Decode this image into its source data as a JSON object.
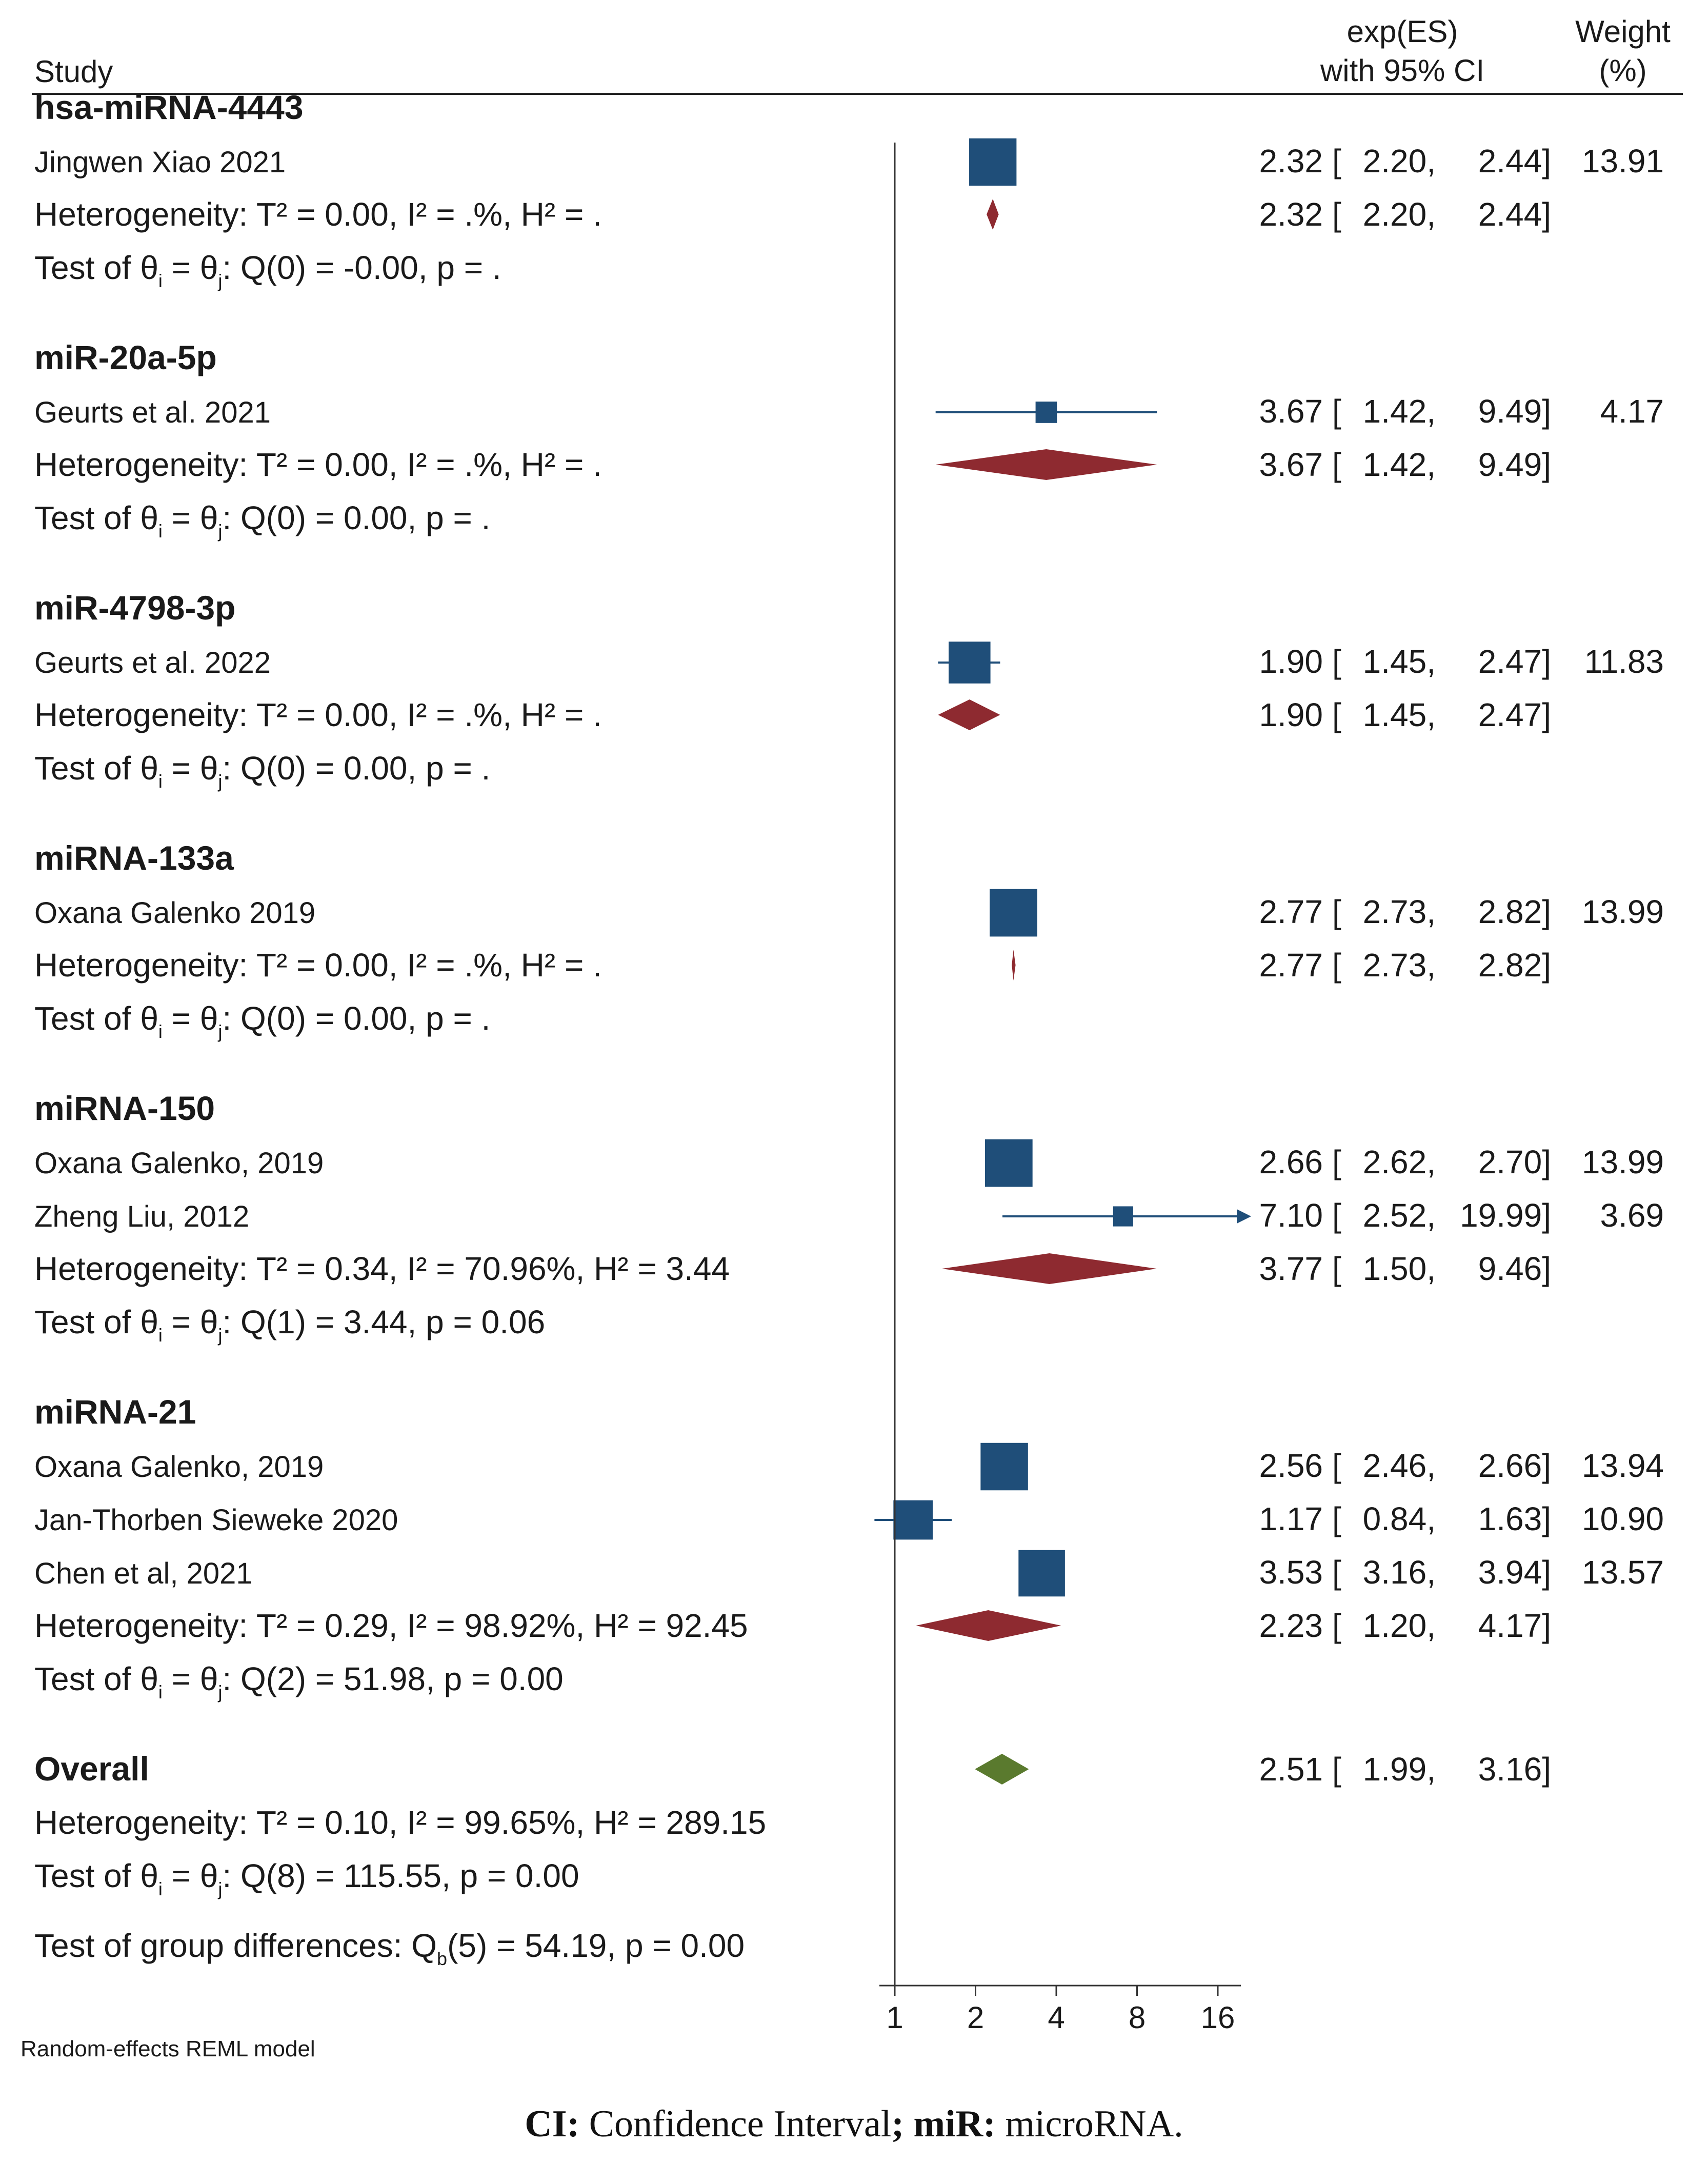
{
  "header": {
    "study_label": "Study",
    "es_label_line1": "exp(ES)",
    "es_label_line2": "with 95% CI",
    "weight_label_line1": "Weight",
    "weight_label_line2": "(%)"
  },
  "colors": {
    "study_square": "#1f4e79",
    "subgroup_diamond": "#8e2a30",
    "overall_diamond": "#5a7a2e",
    "line": "#1f4e79"
  },
  "chart_data": {
    "type": "forest",
    "xscale": "log2",
    "xlim": [
      0.8,
      19.99
    ],
    "ticks": [
      1,
      2,
      4,
      8,
      16
    ],
    "tick_labels": [
      "1",
      "2",
      "4",
      "8",
      "16"
    ],
    "model_note": "Random-effects REML model",
    "groups": [
      {
        "name": "hsa-miRNA-4443",
        "studies": [
          {
            "label": "Jingwen Xiao 2021",
            "es": 2.32,
            "lo": 2.2,
            "hi": 2.44,
            "weight": 13.91,
            "text_es": "2.32",
            "text_lo": "2.20,",
            "text_hi": "2.44]",
            "text_w": "13.91"
          }
        ],
        "heterogeneity": "Heterogeneity: T² = 0.00, I² = .%, H² = .",
        "pooled": {
          "es": 2.32,
          "lo": 2.2,
          "hi": 2.44,
          "text_es": "2.32",
          "text_lo": "2.20,",
          "text_hi": "2.44]"
        },
        "test": {
          "pre": "Test of θ",
          "mid": " = θ",
          "post": ": Q(0) = -0.00, p = ."
        }
      },
      {
        "name": "miR-20a-5p",
        "studies": [
          {
            "label": "Geurts et al. 2021",
            "es": 3.67,
            "lo": 1.42,
            "hi": 9.49,
            "weight": 4.17,
            "text_es": "3.67",
            "text_lo": "1.42,",
            "text_hi": "9.49]",
            "text_w": "4.17"
          }
        ],
        "heterogeneity": "Heterogeneity: T² = 0.00, I² = .%, H² = .",
        "pooled": {
          "es": 3.67,
          "lo": 1.42,
          "hi": 9.49,
          "text_es": "3.67",
          "text_lo": "1.42,",
          "text_hi": "9.49]"
        },
        "test": {
          "pre": "Test of θ",
          "mid": " = θ",
          "post": ": Q(0) = 0.00, p = ."
        }
      },
      {
        "name": "miR-4798-3p",
        "studies": [
          {
            "label": "Geurts et al. 2022",
            "es": 1.9,
            "lo": 1.45,
            "hi": 2.47,
            "weight": 11.83,
            "text_es": "1.90",
            "text_lo": "1.45,",
            "text_hi": "2.47]",
            "text_w": "11.83"
          }
        ],
        "heterogeneity": "Heterogeneity: T² = 0.00, I² = .%, H² = .",
        "pooled": {
          "es": 1.9,
          "lo": 1.45,
          "hi": 2.47,
          "text_es": "1.90",
          "text_lo": "1.45,",
          "text_hi": "2.47]"
        },
        "test": {
          "pre": "Test of θ",
          "mid": " = θ",
          "post": ": Q(0) = 0.00, p = ."
        }
      },
      {
        "name": "miRNA-133a",
        "studies": [
          {
            "label": "Oxana Galenko 2019",
            "es": 2.77,
            "lo": 2.73,
            "hi": 2.82,
            "weight": 13.99,
            "text_es": "2.77",
            "text_lo": "2.73,",
            "text_hi": "2.82]",
            "text_w": "13.99"
          }
        ],
        "heterogeneity": "Heterogeneity: T² = 0.00, I² = .%, H² = .",
        "pooled": {
          "es": 2.77,
          "lo": 2.73,
          "hi": 2.82,
          "text_es": "2.77",
          "text_lo": "2.73,",
          "text_hi": "2.82]"
        },
        "test": {
          "pre": "Test of θ",
          "mid": " = θ",
          "post": ": Q(0) = 0.00, p = ."
        }
      },
      {
        "name": "miRNA-150",
        "studies": [
          {
            "label": "Oxana Galenko, 2019",
            "es": 2.66,
            "lo": 2.62,
            "hi": 2.7,
            "weight": 13.99,
            "text_es": "2.66",
            "text_lo": "2.62,",
            "text_hi": "2.70]",
            "text_w": "13.99"
          },
          {
            "label": "Zheng Liu, 2012",
            "es": 7.1,
            "lo": 2.52,
            "hi": 19.99,
            "weight": 3.69,
            "text_es": "7.10",
            "text_lo": "2.52,",
            "text_hi": "19.99]",
            "text_w": "3.69",
            "arrow": true
          }
        ],
        "heterogeneity": "Heterogeneity: T² = 0.34, I² = 70.96%, H² = 3.44",
        "pooled": {
          "es": 3.77,
          "lo": 1.5,
          "hi": 9.46,
          "text_es": "3.77",
          "text_lo": "1.50,",
          "text_hi": "9.46]"
        },
        "test": {
          "pre": "Test of θ",
          "mid": " = θ",
          "post": ": Q(1) = 3.44, p = 0.06"
        }
      },
      {
        "name": "miRNA-21",
        "studies": [
          {
            "label": "Oxana Galenko, 2019",
            "es": 2.56,
            "lo": 2.46,
            "hi": 2.66,
            "weight": 13.94,
            "text_es": "2.56",
            "text_lo": "2.46,",
            "text_hi": "2.66]",
            "text_w": "13.94"
          },
          {
            "label": "Jan-Thorben Sieweke 2020",
            "es": 1.17,
            "lo": 0.84,
            "hi": 1.63,
            "weight": 10.9,
            "text_es": "1.17",
            "text_lo": "0.84,",
            "text_hi": "1.63]",
            "text_w": "10.90"
          },
          {
            "label": "Chen et al, 2021",
            "es": 3.53,
            "lo": 3.16,
            "hi": 3.94,
            "weight": 13.57,
            "text_es": "3.53",
            "text_lo": "3.16,",
            "text_hi": "3.94]",
            "text_w": "13.57"
          }
        ],
        "heterogeneity": "Heterogeneity: T² = 0.29, I² = 98.92%, H² = 92.45",
        "pooled": {
          "es": 2.23,
          "lo": 1.2,
          "hi": 4.17,
          "text_es": "2.23",
          "text_lo": "1.20,",
          "text_hi": "4.17]"
        },
        "test": {
          "pre": "Test of θ",
          "mid": " = θ",
          "post": ": Q(2) = 51.98, p = 0.00"
        }
      }
    ],
    "overall": {
      "label": "Overall",
      "es": 2.51,
      "lo": 1.99,
      "hi": 3.16,
      "text_es": "2.51",
      "text_lo": "1.99,",
      "text_hi": "3.16]",
      "heterogeneity": "Heterogeneity: T² = 0.10, I² = 99.65%, H² = 289.15",
      "test": {
        "pre": "Test of θ",
        "mid": " = θ",
        "post": ": Q(8) = 115.55, p = 0.00"
      },
      "group_test": {
        "pre": "Test of group differences: Q",
        "sub": "b",
        "post": "(5) = 54.19, p = 0.00"
      }
    }
  },
  "caption": {
    "ci_abbr": "CI:",
    "ci_text": " Confidence Interval",
    "sep": ";",
    "mir_abbr": " miR:",
    "mir_text": " microRNA."
  }
}
